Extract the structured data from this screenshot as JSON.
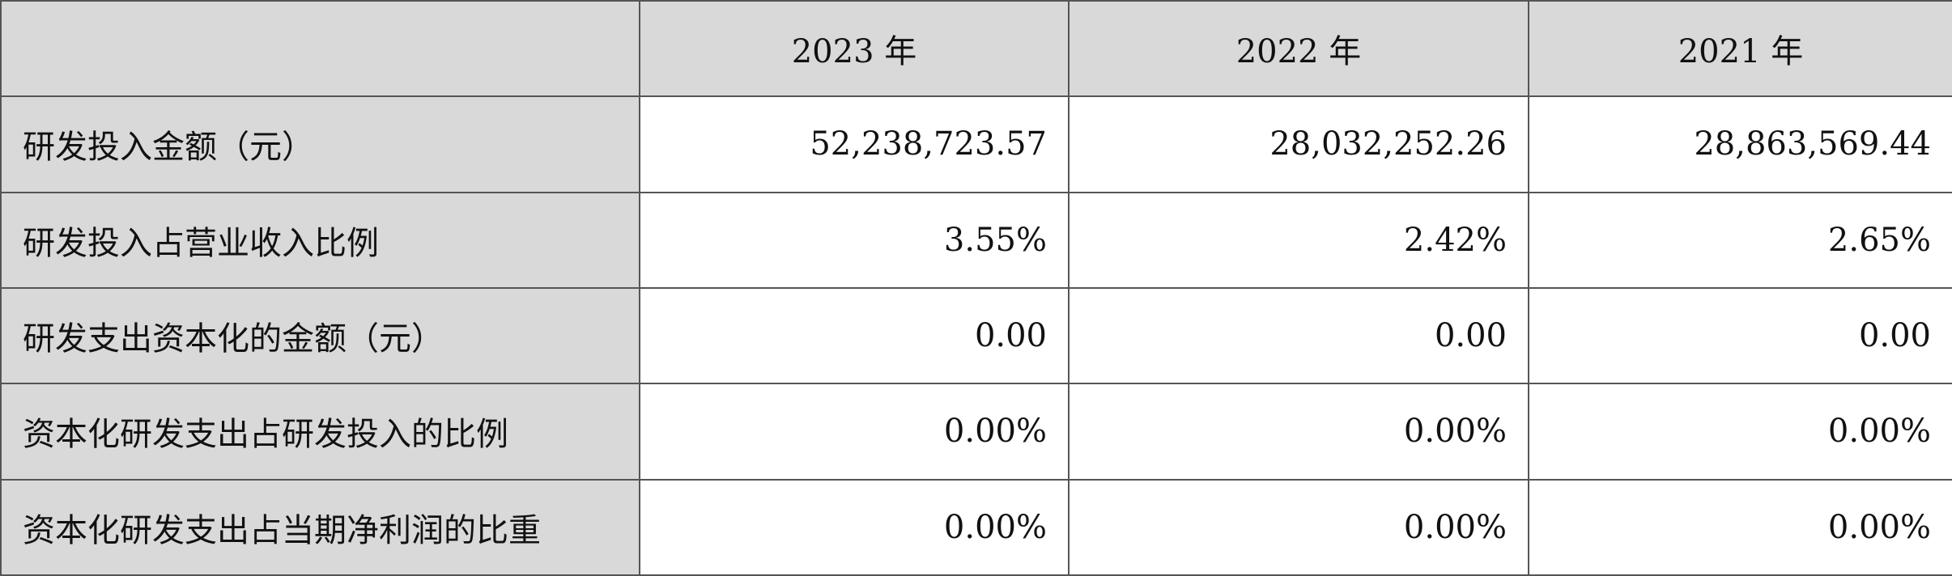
{
  "table": {
    "columns": [
      "2023 年",
      "2022 年",
      "2021 年"
    ],
    "rows": [
      {
        "label": "研发投入金额（元）",
        "values": [
          "52,238,723.57",
          "28,032,252.26",
          "28,863,569.44"
        ]
      },
      {
        "label": "研发投入占营业收入比例",
        "values": [
          "3.55%",
          "2.42%",
          "2.65%"
        ]
      },
      {
        "label": "研发支出资本化的金额（元）",
        "values": [
          "0.00",
          "0.00",
          "0.00"
        ]
      },
      {
        "label": "资本化研发支出占研发投入的比例",
        "values": [
          "0.00%",
          "0.00%",
          "0.00%"
        ]
      },
      {
        "label": "资本化研发支出占当期净利润的比重",
        "values": [
          "0.00%",
          "0.00%",
          "0.00%"
        ]
      }
    ]
  }
}
